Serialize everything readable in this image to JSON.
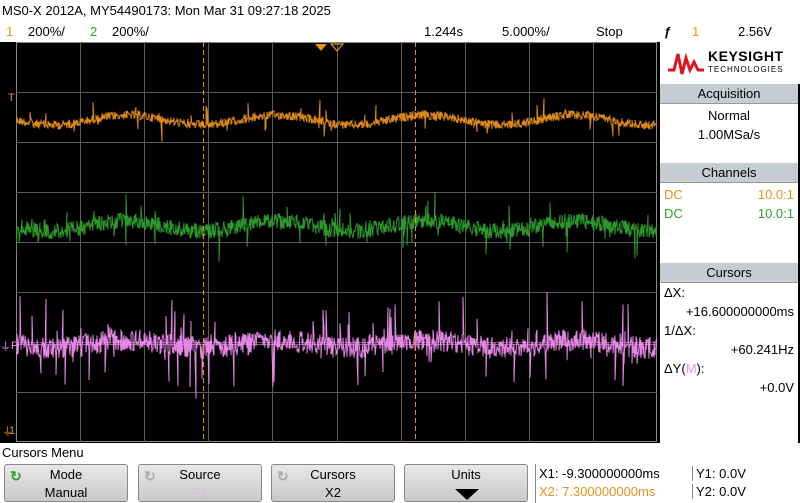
{
  "title": "MS0-X 2012A, MY54490173: Mon Mar 31 09:27:18 2025",
  "status": {
    "ch1_num": "1",
    "ch1_scale": "200%/",
    "ch2_num": "2",
    "ch2_scale": "200%/",
    "delay": "1.244s",
    "timebase": "5.000%/",
    "run_state": "Stop",
    "trig_icon": "ƒ",
    "trig_ch": "1",
    "trig_level": "2.56V"
  },
  "markers": {
    "trig_level": "T",
    "f1": "F1",
    "ch1_ground": "1"
  },
  "logo": {
    "brand": "KEYSIGHT",
    "sub": "TECHNOLOGIES"
  },
  "acquisition": {
    "title": "Acquisition",
    "mode": "Normal",
    "rate": "1.00MSa/s"
  },
  "channels": {
    "title": "Channels",
    "rows": [
      {
        "coupling": "DC",
        "probe": "10.0:1",
        "color": "#e8901a"
      },
      {
        "coupling": "DC",
        "probe": "10.0:1",
        "color": "#2ea02e"
      }
    ]
  },
  "cursors": {
    "title": "Cursors",
    "dx_label": "ΔX:",
    "dx_value": "+16.600000000ms",
    "inv_dx_label": "1/ΔX:",
    "inv_dx_value": "+60.241Hz",
    "dy_label": "ΔY(",
    "dy_src": "M",
    "dy_label_end": "):",
    "dy_value": "+0.0V"
  },
  "menu_title": "Cursors Menu",
  "softkeys": [
    {
      "name": "mode",
      "top": "Mode",
      "bottom": "Manual",
      "knob": true
    },
    {
      "name": "source",
      "top": "Source",
      "bottom": "F1",
      "knob": true
    },
    {
      "name": "cursors",
      "top": "Cursors",
      "bottom": "X2",
      "knob": true
    },
    {
      "name": "units",
      "top": "Units",
      "bottom": "",
      "knob": false
    }
  ],
  "readout": {
    "x1": "X1: -9.300000000ms",
    "x2": "X2: 7.300000000ms",
    "y1": "Y1: 0.0V",
    "y2": "Y2: 0.0V"
  },
  "colors": {
    "ch1": "#e8901a",
    "ch2": "#2ea02e",
    "math": "#f08cf0",
    "cursor": "#e8901a"
  }
}
